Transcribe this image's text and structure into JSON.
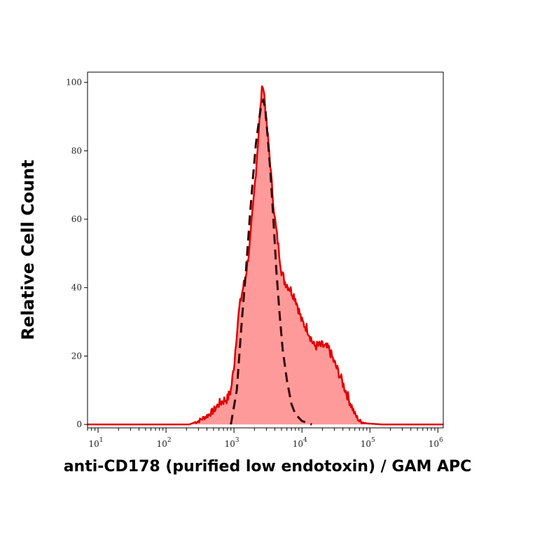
{
  "chart_data": {
    "type": "area",
    "xlabel": "anti-CD178 (purified low endotoxin) / GAM APC",
    "ylabel": "Relative Cell Count",
    "x_scale": "log",
    "xlim": [
      7,
      1200000
    ],
    "ylim": [
      -1,
      103
    ],
    "y_ticks": [
      0,
      20,
      40,
      60,
      80,
      100
    ],
    "x_ticks": [
      {
        "base": "10",
        "exp": "1",
        "value": 10
      },
      {
        "base": "10",
        "exp": "2",
        "value": 100
      },
      {
        "base": "10",
        "exp": "3",
        "value": 1000
      },
      {
        "base": "10",
        "exp": "4",
        "value": 10000
      },
      {
        "base": "10",
        "exp": "5",
        "value": 100000
      },
      {
        "base": "10",
        "exp": "6",
        "value": 1000000
      }
    ],
    "grid": false,
    "series": [
      {
        "style": "filled solid",
        "stroke": "#e00000",
        "fill": "#ff9a9a",
        "points": [
          [
            7,
            0
          ],
          [
            100,
            0
          ],
          [
            220,
            0
          ],
          [
            300,
            1
          ],
          [
            400,
            2.5
          ],
          [
            500,
            4
          ],
          [
            600,
            6
          ],
          [
            700,
            7
          ],
          [
            800,
            7.5
          ],
          [
            900,
            10
          ],
          [
            1000,
            17
          ],
          [
            1100,
            27
          ],
          [
            1200,
            34
          ],
          [
            1300,
            38
          ],
          [
            1500,
            44
          ],
          [
            1700,
            52
          ],
          [
            1900,
            63
          ],
          [
            2100,
            74
          ],
          [
            2300,
            85
          ],
          [
            2500,
            95
          ],
          [
            2650,
            100
          ],
          [
            2800,
            96
          ],
          [
            3000,
            88
          ],
          [
            3300,
            80
          ],
          [
            3600,
            70
          ],
          [
            4000,
            60
          ],
          [
            4500,
            52
          ],
          [
            5000,
            45
          ],
          [
            5500,
            42
          ],
          [
            6500,
            40
          ],
          [
            8000,
            37
          ],
          [
            10000,
            30
          ],
          [
            12000,
            28
          ],
          [
            15000,
            23
          ],
          [
            20000,
            23
          ],
          [
            25000,
            22
          ],
          [
            30000,
            18
          ],
          [
            35000,
            15
          ],
          [
            40000,
            12
          ],
          [
            50000,
            7
          ],
          [
            60000,
            3
          ],
          [
            70000,
            1
          ],
          [
            90000,
            0.3
          ],
          [
            150000,
            0
          ],
          [
            1200000,
            0
          ]
        ]
      },
      {
        "style": "dashed",
        "stroke": "#3a0000",
        "points": [
          [
            900,
            0
          ],
          [
            1100,
            10
          ],
          [
            1300,
            30
          ],
          [
            1500,
            45
          ],
          [
            1700,
            60
          ],
          [
            1900,
            72
          ],
          [
            2100,
            82
          ],
          [
            2300,
            88
          ],
          [
            2500,
            93
          ],
          [
            2700,
            95
          ],
          [
            2900,
            92
          ],
          [
            3100,
            85
          ],
          [
            3400,
            75
          ],
          [
            3800,
            60
          ],
          [
            4200,
            45
          ],
          [
            4700,
            32
          ],
          [
            5200,
            22
          ],
          [
            6000,
            13
          ],
          [
            7000,
            6
          ],
          [
            8000,
            3
          ],
          [
            10000,
            1
          ],
          [
            14000,
            0
          ]
        ]
      }
    ]
  }
}
